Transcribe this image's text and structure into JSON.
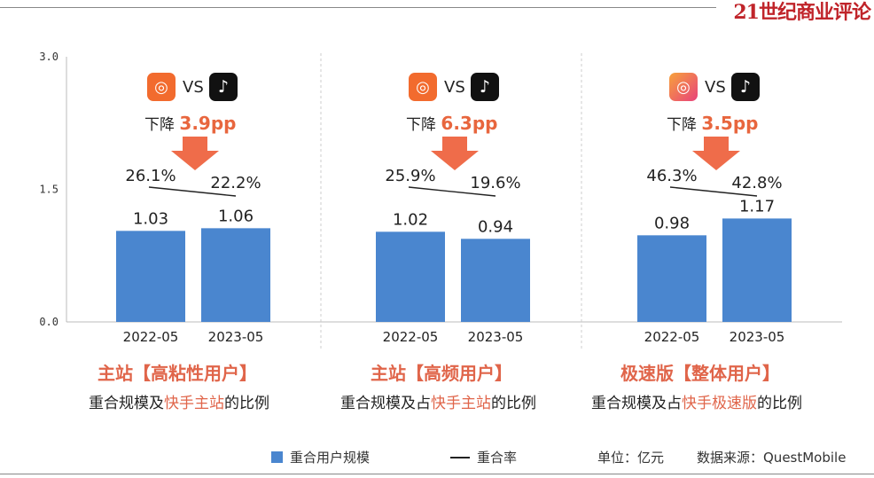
{
  "brand": "21世纪商业评论",
  "legend": {
    "bar_label": "重合用户规模",
    "line_label": "重合率",
    "unit": "单位：亿元",
    "source": "数据来源：QuestMobile"
  },
  "panels": [
    {
      "title": "主站【高粘性用户】",
      "subtitle_prefix": "重合规模及",
      "subtitle_highlight": "快手主站",
      "subtitle_suffix": "的比例",
      "vs": "VS",
      "drop_prefix": "下降",
      "drop_value": "3.9pp"
    },
    {
      "title": "主站【高频用户】",
      "subtitle_prefix": "重合规模及占",
      "subtitle_highlight": "快手主站",
      "subtitle_suffix": "的比例",
      "vs": "VS",
      "drop_prefix": "下降",
      "drop_value": "6.3pp"
    },
    {
      "title": "极速版【整体用户】",
      "subtitle_prefix": "重合规模及占",
      "subtitle_highlight": "快手极速版",
      "subtitle_suffix": "的比例",
      "vs": "VS",
      "drop_prefix": "下降",
      "drop_value": "3.5pp"
    }
  ],
  "chart_data": {
    "type": "bar",
    "categories": [
      "2022-05",
      "2023-05"
    ],
    "yticks": [
      "3.0",
      "1.5",
      "0.0"
    ],
    "ylim": [
      0,
      3.0
    ],
    "groups": [
      {
        "values": [
          1.03,
          1.06
        ],
        "value_labels": [
          "1.03",
          "1.06"
        ],
        "rates": [
          26.1,
          22.2
        ],
        "rate_labels": [
          "26.1%",
          "22.2%"
        ]
      },
      {
        "values": [
          1.02,
          0.94
        ],
        "value_labels": [
          "1.02",
          "0.94"
        ],
        "rates": [
          25.9,
          19.6
        ],
        "rate_labels": [
          "25.9%",
          "19.6%"
        ]
      },
      {
        "values": [
          0.98,
          1.17
        ],
        "value_labels": [
          "0.98",
          "1.17"
        ],
        "rates": [
          46.3,
          42.8
        ],
        "rate_labels": [
          "46.3%",
          "42.8%"
        ]
      }
    ],
    "bar_color": "#4a86cf",
    "arrow_color": "#ef6c4a"
  }
}
